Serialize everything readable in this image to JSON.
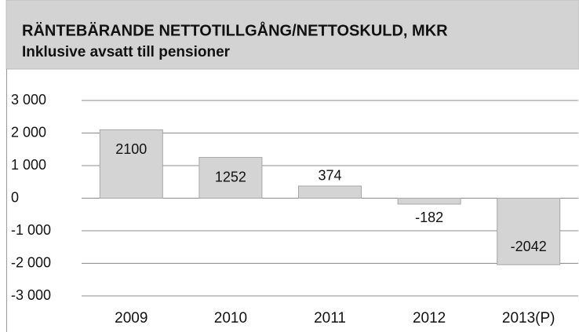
{
  "chart_data": {
    "type": "bar",
    "title": "RÄNTEBÄRANDE NETTOTILLGÅNG/NETTOSKULD, MKR",
    "subtitle": "Inklusive avsatt till pensioner",
    "categories": [
      "2009",
      "2010",
      "2011",
      "2012",
      "2013(P)"
    ],
    "values": [
      2100,
      1252,
      374,
      -182,
      -2042
    ],
    "color": "#d4d4d4",
    "ylim": [
      -3000,
      3000
    ],
    "yticks": [
      {
        "value": 3000,
        "label": "3 000"
      },
      {
        "value": 2000,
        "label": "2 000"
      },
      {
        "value": 1000,
        "label": "1 000"
      },
      0,
      {
        "value": -1000,
        "label": "-1 000"
      },
      {
        "value": -2000,
        "label": "-2 000"
      },
      {
        "value": -3000,
        "label": "-3 000"
      }
    ],
    "grid": true
  }
}
